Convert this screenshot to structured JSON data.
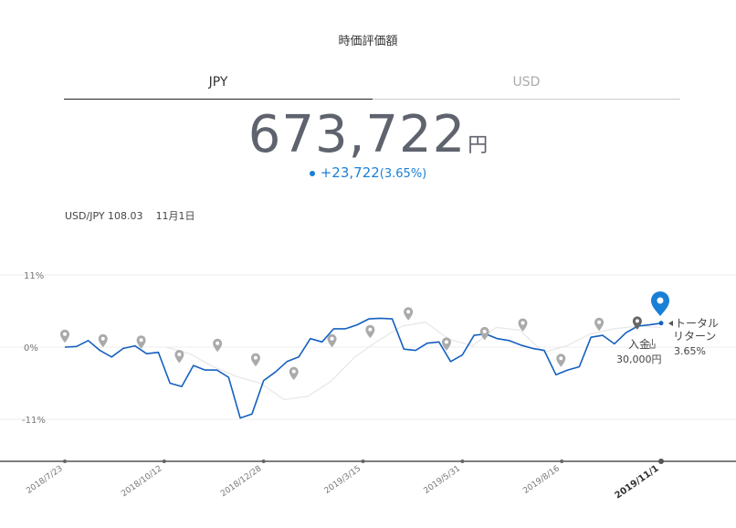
{
  "header": {
    "title": "時価評価額"
  },
  "tabs": [
    {
      "label": "JPY",
      "active": true
    },
    {
      "label": "USD",
      "active": false
    }
  ],
  "summary": {
    "amount": "673,722",
    "unit": "円",
    "change": "+23,722",
    "change_pct": "(3.65%)",
    "accent_color": "#1a7fd6"
  },
  "fx": {
    "rate": "USD/JPY 108.03",
    "date": "11月1日"
  },
  "chart_data": {
    "type": "line",
    "x_tick_labels": [
      "2018/7/23",
      "2018/10/12",
      "2018/12/28",
      "2019/3/15",
      "2019/5/31",
      "2019/8/16",
      "2019/11/1"
    ],
    "y_tick_labels": [
      "11%",
      "0%",
      "-11%"
    ],
    "ylim": [
      -15.7,
      11
    ],
    "series": [
      {
        "color": "#1560c0",
        "values": [
          0.0,
          0.1,
          1.0,
          -0.5,
          -1.5,
          -0.2,
          0.2,
          -1.0,
          -0.8,
          -5.5,
          -6.0,
          -2.8,
          -3.5,
          -3.5,
          -4.6,
          -10.8,
          -10.2,
          -5.1,
          -3.8,
          -2.2,
          -1.5,
          1.3,
          0.8,
          2.8,
          2.8,
          3.4,
          4.3,
          4.4,
          4.3,
          -0.3,
          -0.5,
          0.6,
          0.8,
          -2.2,
          -1.2,
          1.8,
          2.0,
          1.3,
          1.0,
          0.3,
          -0.2,
          -0.5,
          -4.2,
          -3.5,
          -3.0,
          1.5,
          1.8,
          0.5,
          2.2,
          3.2,
          3.4,
          3.65
        ]
      },
      {
        "color": "#e8e8e8",
        "values": [
          0.0,
          -1.0,
          -3.0,
          -4.5,
          -5.5,
          -8.0,
          -7.5,
          -5.2,
          -1.5,
          1.0,
          3.2,
          3.8,
          1.2,
          0.2,
          3.0,
          2.6,
          -0.8,
          0.2,
          2.0,
          2.8,
          3.2,
          3.0
        ]
      }
    ],
    "markers": [
      {
        "label": "",
        "color": "#aaaaaa",
        "value": 1.5
      },
      {
        "label": "",
        "color": "#aaaaaa",
        "value": 0.8
      },
      {
        "label": "",
        "color": "#aaaaaa",
        "value": 0.6
      },
      {
        "label": "",
        "color": "#aaaaaa",
        "value": -1.6
      },
      {
        "label": "",
        "color": "#aaaaaa",
        "value": 0.1
      },
      {
        "label": "",
        "color": "#aaaaaa",
        "value": -2.1
      },
      {
        "label": "",
        "color": "#aaaaaa",
        "value": -4.2
      },
      {
        "label": "",
        "color": "#aaaaaa",
        "value": 0.8
      },
      {
        "label": "",
        "color": "#aaaaaa",
        "value": 2.2
      },
      {
        "label": "",
        "color": "#aaaaaa",
        "value": 4.9
      },
      {
        "label": "",
        "color": "#aaaaaa",
        "value": 0.3
      },
      {
        "label": "",
        "color": "#aaaaaa",
        "value": 1.9
      },
      {
        "label": "",
        "color": "#aaaaaa",
        "value": 3.2
      },
      {
        "label": "",
        "color": "#aaaaaa",
        "value": -2.2
      },
      {
        "label": "",
        "color": "#aaaaaa",
        "value": 3.3
      },
      {
        "label": "",
        "color": "#666666",
        "value": 3.5
      }
    ],
    "deposit_label": "入金",
    "deposit_amount": "30,000円",
    "total_return_label": [
      "トータル",
      "リターン"
    ],
    "total_return_value": "3.65%"
  }
}
